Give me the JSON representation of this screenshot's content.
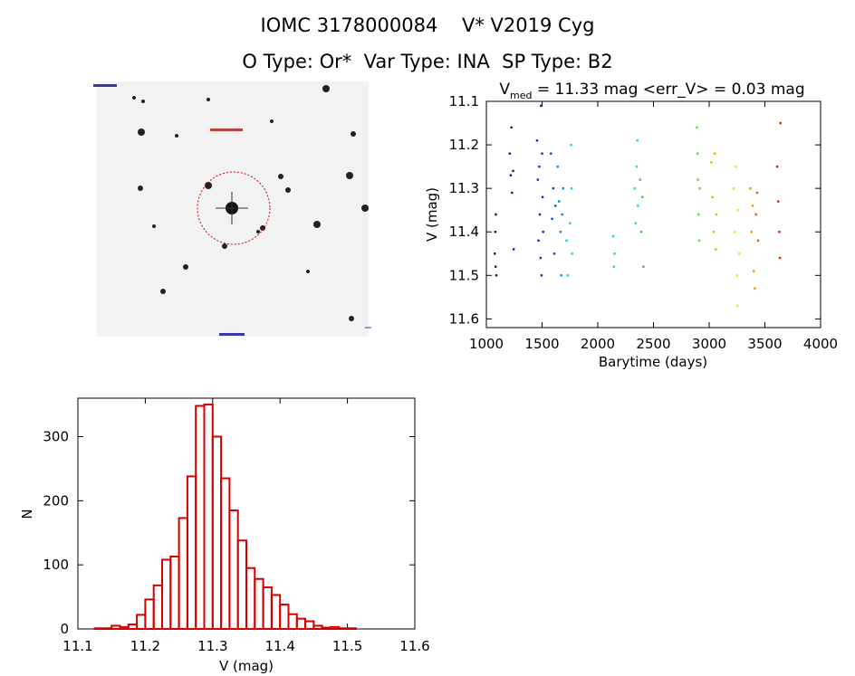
{
  "header": {
    "line1": "IOMC 3178000084    V* V2019 Cyg",
    "line2": "O Type: Or*  Var Type: INA  SP Type: B2"
  },
  "colors": {
    "histogram": "#d40000",
    "circle": "#d40000",
    "image_bg": "#f2f2f2"
  },
  "chart_data": [
    {
      "type": "scatter",
      "title": "V_med = 11.33 mag <err_V> = 0.03 mag",
      "title_parts": {
        "main": "V",
        "sub": "med",
        "rest": " = 11.33 mag <err_V> = 0.03 mag"
      },
      "xlabel": "Barytime (days)",
      "ylabel": "V (mag)",
      "xlim": [
        1000,
        4000
      ],
      "ylim": [
        11.62,
        11.1
      ],
      "y_inverted": true,
      "xticks": [
        1000,
        1500,
        2000,
        2500,
        3000,
        3500,
        4000
      ],
      "yticks": [
        11.1,
        11.2,
        11.3,
        11.4,
        11.5,
        11.6
      ],
      "series": [
        {
          "color": "#3a0058",
          "points": [
            [
              1075,
              11.45
            ],
            [
              1080,
              11.4
            ],
            [
              1083,
              11.48
            ],
            [
              1085,
              11.36
            ],
            [
              1090,
              11.5
            ]
          ]
        },
        {
          "color": "#4a007a",
          "points": [
            [
              1210,
              11.22
            ],
            [
              1218,
              11.27
            ],
            [
              1225,
              11.16
            ],
            [
              1230,
              11.31
            ],
            [
              1240,
              11.26
            ],
            [
              1245,
              11.44
            ]
          ]
        },
        {
          "color": "#3a14b8",
          "points": [
            [
              1455,
              11.19
            ],
            [
              1462,
              11.28
            ],
            [
              1468,
              11.42
            ],
            [
              1475,
              11.25
            ],
            [
              1480,
              11.36
            ],
            [
              1486,
              11.46
            ],
            [
              1490,
              11.11
            ],
            [
              1495,
              11.5
            ],
            [
              1500,
              11.22
            ],
            [
              1505,
              11.32
            ],
            [
              1510,
              11.4
            ]
          ]
        },
        {
          "color": "#0050c8",
          "points": [
            [
              1580,
              11.22
            ],
            [
              1590,
              11.37
            ],
            [
              1600,
              11.3
            ],
            [
              1610,
              11.45
            ],
            [
              1620,
              11.34
            ]
          ]
        },
        {
          "color": "#0088e0",
          "points": [
            [
              1640,
              11.25
            ],
            [
              1652,
              11.33
            ],
            [
              1665,
              11.4
            ],
            [
              1672,
              11.5
            ],
            [
              1680,
              11.36
            ],
            [
              1690,
              11.3
            ]
          ]
        },
        {
          "color": "#18c8e8",
          "points": [
            [
              1720,
              11.42
            ],
            [
              1730,
              11.5
            ],
            [
              1750,
              11.38
            ],
            [
              1760,
              11.2
            ],
            [
              1765,
              11.3
            ],
            [
              1770,
              11.45
            ]
          ]
        },
        {
          "color": "#10d8d8",
          "points": [
            [
              2140,
              11.41
            ],
            [
              2145,
              11.48
            ],
            [
              2150,
              11.45
            ]
          ]
        },
        {
          "color": "#20e0a0",
          "points": [
            [
              2330,
              11.3
            ],
            [
              2340,
              11.38
            ],
            [
              2350,
              11.25
            ],
            [
              2355,
              11.19
            ],
            [
              2360,
              11.34
            ]
          ]
        },
        {
          "color": "#30d030",
          "points": [
            [
              2380,
              11.28
            ],
            [
              2390,
              11.4
            ],
            [
              2400,
              11.32
            ],
            [
              2410,
              11.48
            ]
          ]
        },
        {
          "color": "#50e020",
          "points": [
            [
              2890,
              11.16
            ],
            [
              2895,
              11.22
            ],
            [
              2900,
              11.28
            ],
            [
              2905,
              11.36
            ],
            [
              2910,
              11.42
            ],
            [
              2915,
              11.3
            ]
          ]
        },
        {
          "color": "#90e000",
          "points": [
            [
              3020,
              11.24
            ],
            [
              3030,
              11.32
            ],
            [
              3040,
              11.4
            ],
            [
              3050,
              11.22
            ],
            [
              3060,
              11.44
            ],
            [
              3065,
              11.36
            ]
          ]
        },
        {
          "color": "#e8e800",
          "points": [
            [
              3220,
              11.3
            ],
            [
              3230,
              11.4
            ],
            [
              3240,
              11.25
            ],
            [
              3250,
              11.5
            ],
            [
              3255,
              11.57
            ],
            [
              3260,
              11.35
            ],
            [
              3270,
              11.45
            ]
          ]
        },
        {
          "color": "#e89800",
          "points": [
            [
              3370,
              11.3
            ],
            [
              3380,
              11.4
            ],
            [
              3390,
              11.34
            ],
            [
              3400,
              11.49
            ],
            [
              3410,
              11.53
            ]
          ]
        },
        {
          "color": "#e06000",
          "points": [
            [
              3420,
              11.36
            ],
            [
              3430,
              11.31
            ],
            [
              3440,
              11.42
            ]
          ]
        },
        {
          "color": "#d42000",
          "points": [
            [
              3610,
              11.25
            ],
            [
              3620,
              11.33
            ],
            [
              3630,
              11.4
            ],
            [
              3635,
              11.46
            ],
            [
              3640,
              11.15
            ]
          ]
        }
      ]
    },
    {
      "type": "bar",
      "subtype": "histogram",
      "xlabel": "V (mag)",
      "ylabel": "N",
      "xlim": [
        11.1,
        11.6
      ],
      "ylim": [
        0,
        360
      ],
      "xticks": [
        11.1,
        11.2,
        11.3,
        11.4,
        11.5,
        11.6
      ],
      "yticks": [
        0,
        100,
        200,
        300
      ],
      "bin_width": 0.0125,
      "bins_start": 11.125,
      "values": [
        1,
        1,
        5,
        3,
        7,
        22,
        46,
        68,
        108,
        113,
        173,
        238,
        348,
        350,
        300,
        235,
        185,
        138,
        95,
        78,
        65,
        53,
        38,
        23,
        16,
        12,
        5,
        2,
        3,
        1,
        1
      ]
    }
  ]
}
